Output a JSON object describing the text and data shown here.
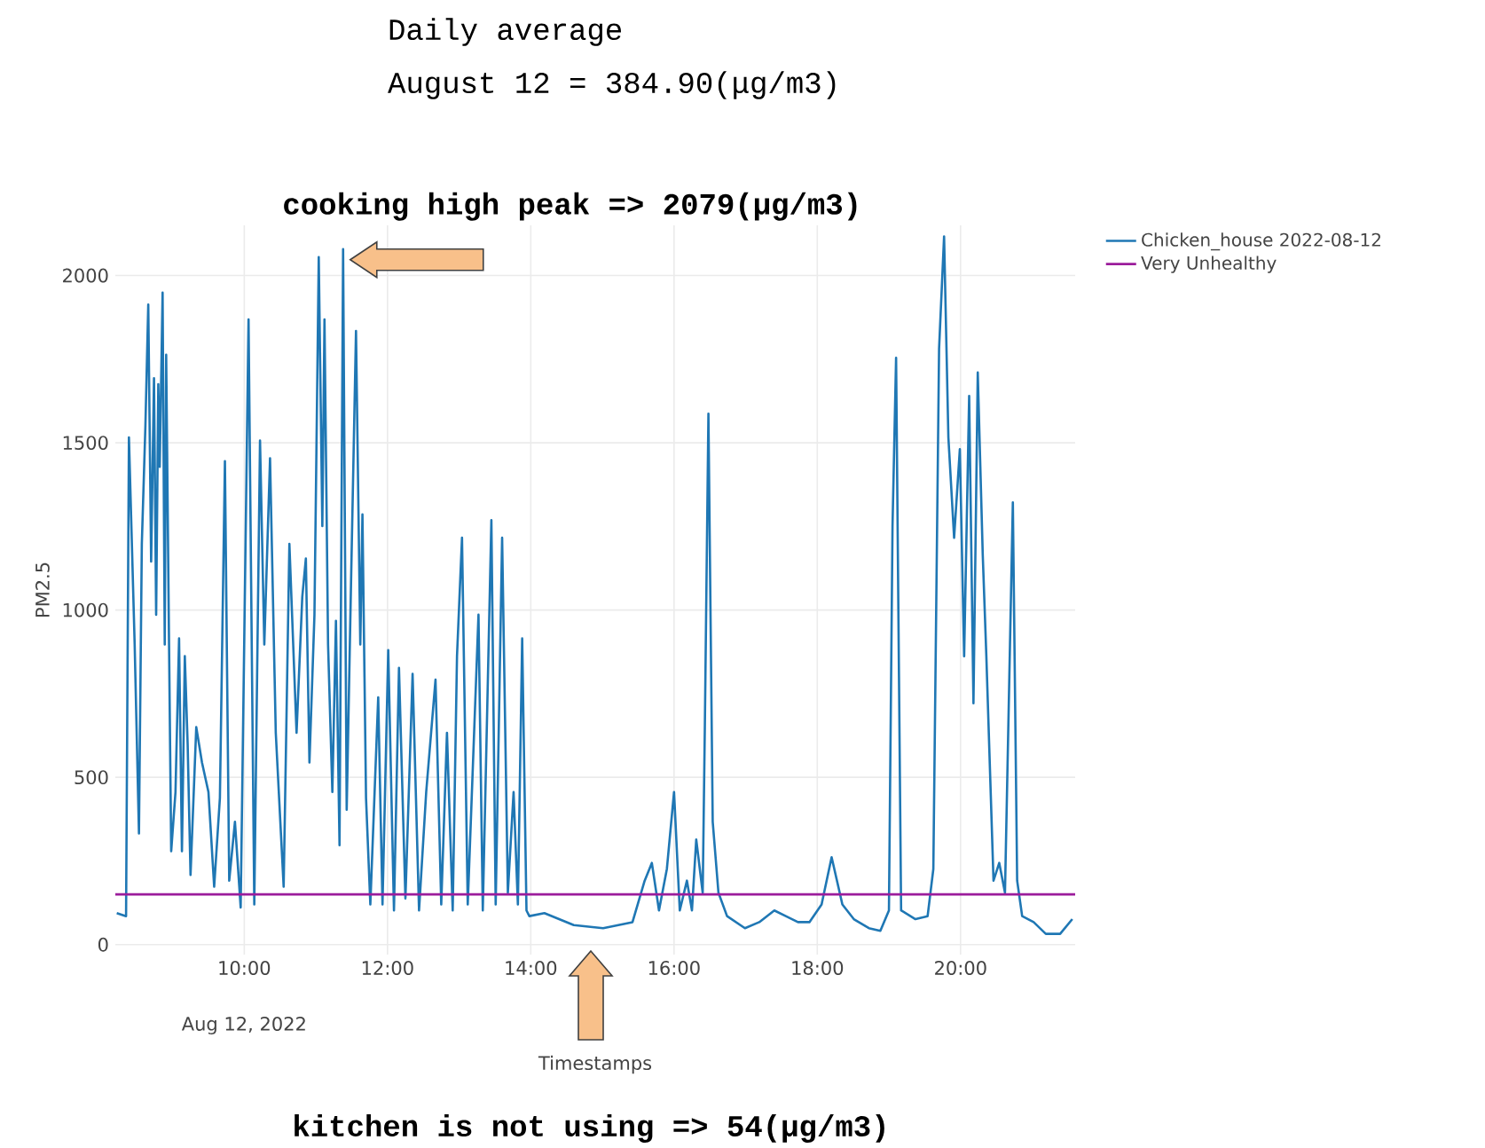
{
  "chart_data": {
    "type": "line",
    "xlabel": "Timestamps",
    "ylabel": "PM2.5",
    "annotations": [
      "Daily average",
      "August 12 = 384.90(μg/m3)",
      {
        "text": "cooking high peak => 2079(μg/m3)",
        "x": 11.38,
        "y": 2079
      },
      "kitchen is not using => 54(μg/m3)",
      "Aug 12, 2022"
    ],
    "x": [
      8.22,
      8.35,
      8.39,
      8.47,
      8.53,
      8.57,
      8.62,
      8.66,
      8.7,
      8.74,
      8.77,
      8.8,
      8.82,
      8.86,
      8.89,
      8.91,
      8.95,
      8.98,
      9.04,
      9.09,
      9.13,
      9.17,
      9.21,
      9.25,
      9.33,
      9.41,
      9.5,
      9.58,
      9.66,
      9.73,
      9.79,
      9.87,
      9.95,
      10.06,
      10.14,
      10.22,
      10.28,
      10.36,
      10.44,
      10.55,
      10.63,
      10.73,
      10.81,
      10.86,
      10.91,
      10.98,
      11.04,
      11.09,
      11.12,
      11.17,
      11.23,
      11.28,
      11.33,
      11.38,
      11.43,
      11.49,
      11.56,
      11.62,
      11.65,
      11.7,
      11.76,
      11.87,
      11.93,
      12.01,
      12.09,
      12.16,
      12.25,
      12.35,
      12.44,
      12.54,
      12.67,
      12.75,
      12.83,
      12.91,
      12.97,
      13.04,
      13.12,
      13.27,
      13.33,
      13.45,
      13.51,
      13.6,
      13.68,
      13.76,
      13.82,
      13.88,
      13.94,
      13.98,
      14.19,
      14.6,
      15.01,
      15.42,
      15.59,
      15.69,
      15.79,
      15.9,
      16.0,
      16.08,
      16.18,
      16.25,
      16.31,
      16.4,
      16.43,
      16.48,
      16.54,
      16.62,
      16.74,
      16.99,
      17.19,
      17.4,
      17.56,
      17.73,
      17.89,
      18.06,
      18.2,
      18.35,
      18.51,
      18.72,
      18.88,
      19.0,
      19.05,
      19.1,
      19.17,
      19.37,
      19.54,
      19.62,
      19.7,
      19.77,
      19.83,
      19.91,
      19.99,
      20.05,
      20.12,
      20.18,
      20.24,
      20.31,
      20.36,
      20.46,
      20.54,
      20.62,
      20.69,
      20.73,
      20.79,
      20.86,
      21.02,
      21.19,
      21.39,
      21.56
    ],
    "series": [
      {
        "name": "Chicken_house 2022-08-12",
        "color": "#1f77b4",
        "values": [
          94,
          85,
          1516,
          897,
          332,
          1198,
          1551,
          1913,
          1145,
          1693,
          986,
          1675,
          1428,
          1949,
          897,
          1763,
          897,
          279,
          456,
          915,
          279,
          862,
          597,
          208,
          650,
          544,
          456,
          173,
          438,
          1445,
          191,
          367,
          111,
          1869,
          120,
          1507,
          897,
          1454,
          633,
          173,
          1198,
          633,
          1039,
          1154,
          544,
          986,
          2055,
          1251,
          1869,
          897,
          456,
          968,
          297,
          2079,
          403,
          1074,
          1834,
          897,
          1286,
          438,
          120,
          739,
          120,
          880,
          102,
          827,
          138,
          809,
          102,
          456,
          792,
          120,
          633,
          102,
          862,
          1216,
          120,
          986,
          102,
          1269,
          120,
          1216,
          155,
          456,
          120,
          915,
          102,
          85,
          94,
          58,
          49,
          67,
          191,
          244,
          102,
          226,
          456,
          102,
          191,
          102,
          314,
          155,
          650,
          1587,
          367,
          155,
          85,
          49,
          67,
          102,
          85,
          67,
          67,
          120,
          261,
          120,
          76,
          49,
          41,
          102,
          1251,
          1754,
          102,
          76,
          85,
          226,
          1781,
          2117,
          1516,
          1216,
          1481,
          862,
          1640,
          721,
          1710,
          1163,
          862,
          191,
          244,
          155,
          897,
          1322,
          191,
          85,
          67,
          32,
          32,
          76
        ]
      }
    ],
    "ref_lines": [
      {
        "axis": "y",
        "value": 150,
        "label": "Very Unhealthy",
        "color": "#9b1c9b"
      }
    ],
    "xlim": [
      8.2,
      21.6
    ],
    "ylim": [
      -30,
      2150
    ],
    "xticks": [
      {
        "value": 10,
        "label": "10:00"
      },
      {
        "value": 12,
        "label": "12:00"
      },
      {
        "value": 14,
        "label": "14:00"
      },
      {
        "value": 16,
        "label": "16:00"
      },
      {
        "value": 18,
        "label": "18:00"
      },
      {
        "value": 20,
        "label": "20:00"
      }
    ],
    "yticks": [
      0,
      500,
      1000,
      1500,
      2000
    ],
    "grid": true,
    "legend": "top right",
    "line_style": "solid"
  }
}
